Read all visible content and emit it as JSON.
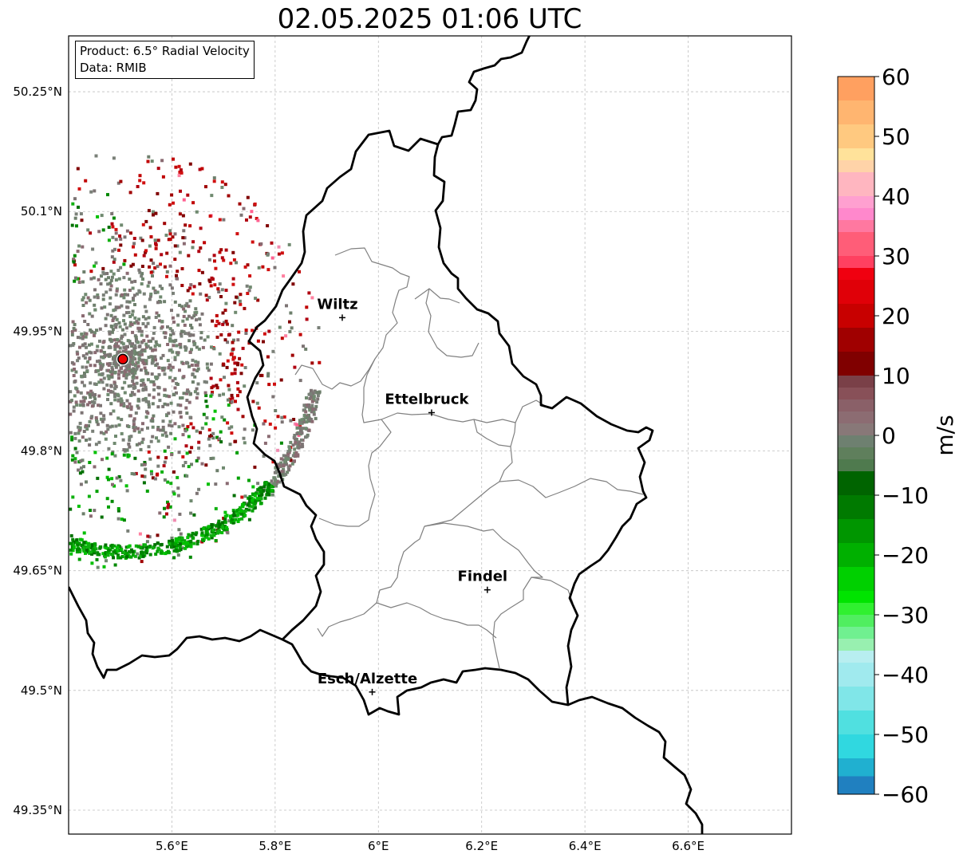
{
  "title": "02.05.2025 01:06 UTC",
  "legend": {
    "product": "Product: 6.5° Radial Velocity",
    "data": "Data: RMIB"
  },
  "map": {
    "lon_range": [
      5.4,
      6.8
    ],
    "lat_range": [
      49.32,
      50.32
    ],
    "x_ticks": [
      {
        "value": 5.6,
        "label": "5.6°E"
      },
      {
        "value": 5.8,
        "label": "5.8°E"
      },
      {
        "value": 6.0,
        "label": "6°E"
      },
      {
        "value": 6.2,
        "label": "6.2°E"
      },
      {
        "value": 6.4,
        "label": "6.4°E"
      },
      {
        "value": 6.6,
        "label": "6.6°E"
      }
    ],
    "y_ticks": [
      {
        "value": 50.25,
        "label": "50.25°N"
      },
      {
        "value": 50.1,
        "label": "50.1°N"
      },
      {
        "value": 49.95,
        "label": "49.95°N"
      },
      {
        "value": 49.8,
        "label": "49.8°N"
      },
      {
        "value": 49.65,
        "label": "49.65°N"
      },
      {
        "value": 49.5,
        "label": "49.5°N"
      },
      {
        "value": 49.35,
        "label": "49.35°N"
      }
    ],
    "radar_site": {
      "lon": 5.505,
      "lat": 49.915
    },
    "cities": [
      {
        "name": "Wiltz",
        "lon": 5.93,
        "lat": 49.967
      },
      {
        "name": "Ettelbruck",
        "lon": 6.103,
        "lat": 49.848
      },
      {
        "name": "Findel",
        "lon": 6.211,
        "lat": 49.626
      },
      {
        "name": "Esch/Alzette",
        "lon": 5.988,
        "lat": 49.498
      }
    ]
  },
  "colorbar": {
    "label": "m/s",
    "min": -60,
    "max": 60,
    "ticks": [
      {
        "value": 60,
        "label": "60"
      },
      {
        "value": 50,
        "label": "50"
      },
      {
        "value": 40,
        "label": "40"
      },
      {
        "value": 30,
        "label": "30"
      },
      {
        "value": 20,
        "label": "20"
      },
      {
        "value": 10,
        "label": "10"
      },
      {
        "value": 0,
        "label": "0"
      },
      {
        "value": -10,
        "label": "−10"
      },
      {
        "value": -20,
        "label": "−20"
      },
      {
        "value": -30,
        "label": "−30"
      },
      {
        "value": -40,
        "label": "−40"
      },
      {
        "value": -50,
        "label": "−50"
      },
      {
        "value": -60,
        "label": "−60"
      }
    ],
    "bands": [
      {
        "from": 56,
        "to": 60,
        "color": "#ffa060"
      },
      {
        "from": 52,
        "to": 56,
        "color": "#ffb570"
      },
      {
        "from": 48,
        "to": 52,
        "color": "#ffc980"
      },
      {
        "from": 46,
        "to": 48,
        "color": "#ffe29a"
      },
      {
        "from": 44,
        "to": 46,
        "color": "#ffd3a8"
      },
      {
        "from": 40,
        "to": 44,
        "color": "#ffb6c0"
      },
      {
        "from": 38,
        "to": 40,
        "color": "#ffa0d0"
      },
      {
        "from": 36,
        "to": 38,
        "color": "#ff88cc"
      },
      {
        "from": 34,
        "to": 36,
        "color": "#ff78a0"
      },
      {
        "from": 30,
        "to": 34,
        "color": "#ff5d78"
      },
      {
        "from": 28,
        "to": 30,
        "color": "#ff4060"
      },
      {
        "from": 26,
        "to": 28,
        "color": "#f00010"
      },
      {
        "from": 22,
        "to": 26,
        "color": "#e00008"
      },
      {
        "from": 18,
        "to": 22,
        "color": "#c80000"
      },
      {
        "from": 14,
        "to": 18,
        "color": "#a00000"
      },
      {
        "from": 10,
        "to": 14,
        "color": "#800000"
      },
      {
        "from": 8,
        "to": 10,
        "color": "#7a4048"
      },
      {
        "from": 6,
        "to": 8,
        "color": "#885058"
      },
      {
        "from": 4,
        "to": 6,
        "color": "#8a6068"
      },
      {
        "from": 2,
        "to": 4,
        "color": "#8c6c72"
      },
      {
        "from": 0,
        "to": 2,
        "color": "#887878"
      },
      {
        "from": -2,
        "to": 0,
        "color": "#6e8070"
      },
      {
        "from": -4,
        "to": -2,
        "color": "#5f7f5c"
      },
      {
        "from": -6,
        "to": -4,
        "color": "#4f7a4e"
      },
      {
        "from": -10,
        "to": -6,
        "color": "#006400"
      },
      {
        "from": -14,
        "to": -10,
        "color": "#007a00"
      },
      {
        "from": -18,
        "to": -14,
        "color": "#009600"
      },
      {
        "from": -22,
        "to": -18,
        "color": "#00b000"
      },
      {
        "from": -26,
        "to": -22,
        "color": "#00d000"
      },
      {
        "from": -28,
        "to": -26,
        "color": "#00e400"
      },
      {
        "from": -30,
        "to": -28,
        "color": "#30f030"
      },
      {
        "from": -32,
        "to": -30,
        "color": "#50ee60"
      },
      {
        "from": -34,
        "to": -32,
        "color": "#70f090"
      },
      {
        "from": -36,
        "to": -34,
        "color": "#98f0b0"
      },
      {
        "from": -38,
        "to": -36,
        "color": "#b8eef0"
      },
      {
        "from": -42,
        "to": -38,
        "color": "#a0eaee"
      },
      {
        "from": -46,
        "to": -42,
        "color": "#80e6e8"
      },
      {
        "from": -50,
        "to": -46,
        "color": "#50e0e0"
      },
      {
        "from": -54,
        "to": -50,
        "color": "#30d8e0"
      },
      {
        "from": -57,
        "to": -54,
        "color": "#20b0d0"
      },
      {
        "from": -60,
        "to": -57,
        "color": "#2080c0"
      }
    ]
  }
}
